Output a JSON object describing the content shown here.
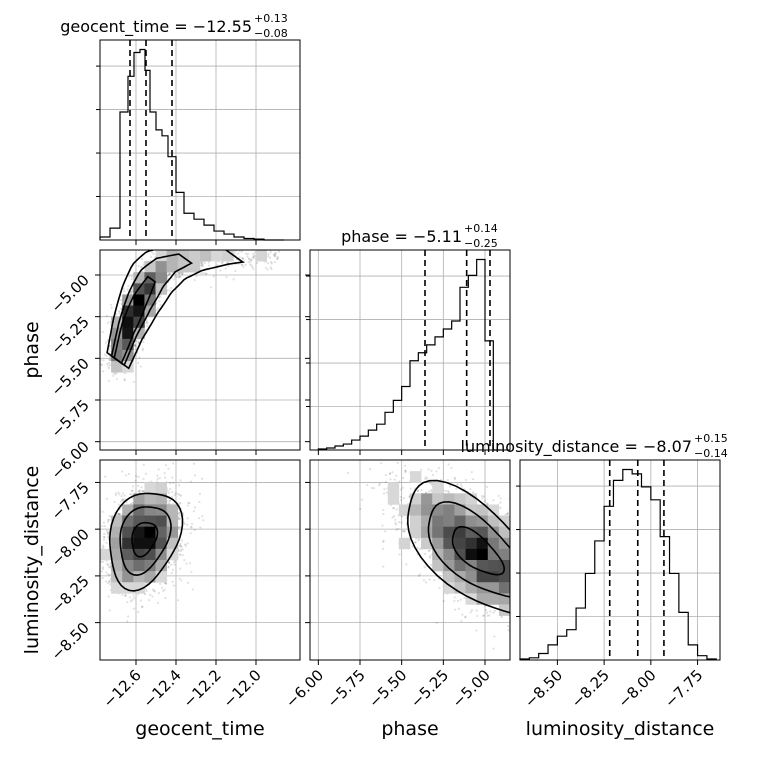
{
  "chart_data": {
    "type": "corner",
    "parameters": [
      {
        "name": "geocent_time",
        "axis_label": "geocent_time",
        "title_value": "−12.55",
        "plus": "+0.13",
        "minus": "−0.08",
        "range": [
          -12.78,
          -11.78
        ],
        "ticks": [
          -12.6,
          -12.4,
          -12.2,
          -12.0
        ],
        "tick_labels": [
          "−12.6",
          "−12.4",
          "−12.2",
          "−12.0"
        ],
        "quantiles": [
          -12.63,
          -12.55,
          -12.42
        ],
        "hist_edges": [
          -12.78,
          -12.73,
          -12.68,
          -12.64,
          -12.61,
          -12.58,
          -12.555,
          -12.53,
          -12.5,
          -12.47,
          -12.44,
          -12.4,
          -12.36,
          -12.31,
          -12.26,
          -12.21,
          -12.16,
          -12.11,
          -12.06,
          -12.01,
          -11.96,
          -11.91,
          -11.86
        ],
        "hist_counts": [
          1,
          4,
          43,
          55,
          63,
          64,
          57,
          43,
          37,
          35,
          28,
          16,
          9,
          7,
          5,
          3,
          2,
          1,
          0.5,
          0.3,
          0,
          0
        ]
      },
      {
        "name": "phase",
        "axis_label": "phase",
        "title_value": "−5.11",
        "plus": "+0.14",
        "minus": "−0.25",
        "range": [
          -6.05,
          -4.85
        ],
        "ticks": [
          -6.0,
          -5.75,
          -5.5,
          -5.25,
          -5.0
        ],
        "tick_labels": [
          "−6.00",
          "−5.75",
          "−5.50",
          "−5.25",
          "−5.00"
        ],
        "quantiles": [
          -5.36,
          -5.11,
          -4.97
        ],
        "hist_edges": [
          -6.0,
          -5.95,
          -5.9,
          -5.85,
          -5.8,
          -5.75,
          -5.7,
          -5.65,
          -5.6,
          -5.55,
          -5.5,
          -5.45,
          -5.4,
          -5.35,
          -5.3,
          -5.25,
          -5.2,
          -5.15,
          -5.1,
          -5.05,
          -5.0,
          -4.95,
          -4.9
        ],
        "hist_counts": [
          0.5,
          1,
          2,
          3,
          5,
          7,
          10,
          13,
          19,
          25,
          32,
          45,
          49,
          53,
          57,
          61,
          65,
          82,
          88,
          96,
          55,
          0
        ]
      },
      {
        "name": "luminosity_distance",
        "axis_label": "luminosity_distance",
        "title_value": "−8.07",
        "plus": "+0.15",
        "minus": "−0.14",
        "range": [
          -8.7,
          -7.63
        ],
        "ticks": [
          -8.5,
          -8.25,
          -8.0,
          -7.75
        ],
        "tick_labels": [
          "−8.50",
          "−8.25",
          "−8.00",
          "−7.75"
        ],
        "quantiles": [
          -8.22,
          -8.07,
          -7.93
        ],
        "hist_edges": [
          -8.7,
          -8.65,
          -8.6,
          -8.55,
          -8.5,
          -8.45,
          -8.4,
          -8.35,
          -8.3,
          -8.25,
          -8.2,
          -8.15,
          -8.1,
          -8.05,
          -8.0,
          -7.95,
          -7.9,
          -7.85,
          -7.8,
          -7.75,
          -7.7,
          -7.65
        ],
        "hist_counts": [
          0.5,
          1,
          3,
          7,
          11,
          14,
          24,
          40,
          55,
          71,
          83,
          88,
          86,
          80,
          74,
          57,
          40,
          22,
          7,
          2,
          0.5
        ]
      }
    ],
    "pairs": [
      {
        "x": 0,
        "y": 1,
        "ridge_x": [
          -12.7,
          -12.64,
          -12.58,
          -12.52,
          -12.45,
          -12.35,
          -12.2,
          -12.0,
          -11.85
        ],
        "ridge_y": [
          -5.55,
          -5.32,
          -5.15,
          -5.02,
          -4.94,
          -4.9,
          -4.88,
          -4.87,
          -4.86
        ]
      },
      {
        "x": 0,
        "y": 2,
        "center": [
          -12.56,
          -8.05
        ],
        "spread": [
          0.09,
          0.13
        ],
        "corr": 0.25
      },
      {
        "x": 1,
        "y": 2,
        "center": [
          -5.05,
          -8.12
        ],
        "spread": [
          0.22,
          0.18
        ],
        "corr": -0.65
      }
    ]
  }
}
